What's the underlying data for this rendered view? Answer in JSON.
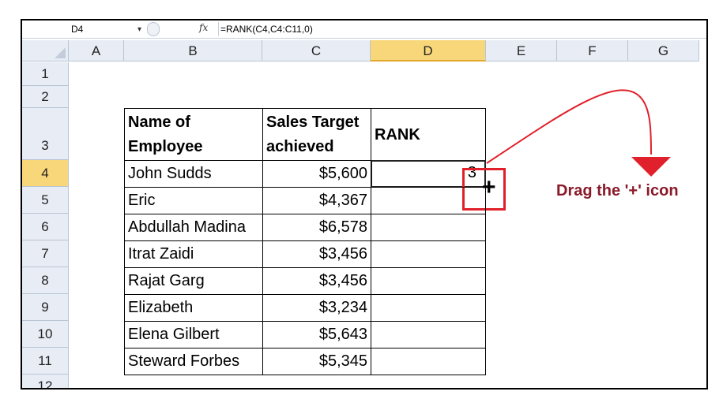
{
  "formula_bar": {
    "name_box": "D4",
    "fx_label": "fx",
    "formula": "=RANK(C4,C4:C11,0)"
  },
  "columns": [
    "A",
    "B",
    "C",
    "D",
    "E",
    "F",
    "G"
  ],
  "active_column": "D",
  "rows": [
    "1",
    "2",
    "3",
    "4",
    "5",
    "6",
    "7",
    "8",
    "9",
    "10",
    "11",
    "12"
  ],
  "active_row": "4",
  "table": {
    "headers": {
      "name_line1": "Name of",
      "name_line2": "Employee",
      "sales_line1": "Sales Target",
      "sales_line2": "achieved",
      "rank": "RANK"
    },
    "rows": [
      {
        "name": "John Sudds",
        "sales": "$5,600",
        "rank": "3"
      },
      {
        "name": "Eric",
        "sales": "$4,367",
        "rank": ""
      },
      {
        "name": "Abdullah Madina",
        "sales": "$6,578",
        "rank": ""
      },
      {
        "name": "Itrat Zaidi",
        "sales": "$3,456",
        "rank": ""
      },
      {
        "name": "Rajat Garg",
        "sales": "$3,456",
        "rank": ""
      },
      {
        "name": "Elizabeth",
        "sales": "$3,234",
        "rank": ""
      },
      {
        "name": "Elena Gilbert",
        "sales": "$5,643",
        "rank": ""
      },
      {
        "name": "Steward Forbes",
        "sales": "$5,345",
        "rank": ""
      }
    ]
  },
  "annotation": {
    "label": "Drag the '+' icon",
    "color": "#e0202a",
    "text_color": "#8a1a2a"
  },
  "colors": {
    "header_bg": "#e8edf5",
    "active_header_bg": "#f8d67a"
  }
}
